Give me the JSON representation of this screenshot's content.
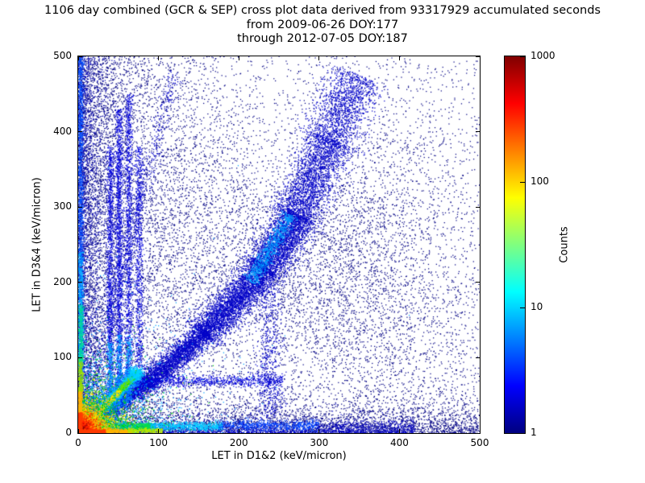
{
  "chart_data": {
    "type": "heatmap",
    "title": "1106 day combined (GCR & SEP) cross plot data derived from 93317929 accumulated seconds",
    "subtitle": [
      "from 2009-06-26 DOY:177",
      "through 2012-07-05 DOY:187"
    ],
    "xlabel": "LET in D1&2 (keV/micron)",
    "ylabel": "LET in D3&4 (keV/micron)",
    "x_range": [
      0,
      500
    ],
    "y_range": [
      0,
      500
    ],
    "x_ticks": [
      0,
      100,
      200,
      300,
      400,
      500
    ],
    "y_ticks": [
      0,
      100,
      200,
      300,
      400,
      500
    ],
    "grid": false,
    "colorbar": {
      "label": "Counts",
      "scale": "log",
      "ticks": [
        "1",
        "10",
        "100",
        "1000"
      ],
      "range": [
        1,
        1000
      ],
      "colormap": "jet"
    },
    "description": "2D log-density cross plot of LET in detectors D1&2 vs D3&4; intense hot spot at origin (counts ~1000), bright diagonal coincidence line up to ~(72,78), horizontal proton band near y~8, vertical streaks near x=40-76, broad diffuse diagonal band from (10,8) through (235,220) to (350,475), sparse single-count background everywhere.",
    "density_features": [
      {
        "type": "uniform",
        "n": 3200,
        "x0": 0,
        "x1": 500,
        "y0": 0,
        "y1": 500,
        "color": "#000084"
      },
      {
        "type": "expx",
        "n": 6500,
        "scale": 55,
        "y0": 0,
        "y1": 500,
        "color": "#000084"
      },
      {
        "type": "expx",
        "n": 2500,
        "scale": 10,
        "y0": 0,
        "y1": 500,
        "color": "#0000b4"
      },
      {
        "type": "expy",
        "n": 3800,
        "scale": 20,
        "x0": 0,
        "x1": 500,
        "color": "#000084"
      },
      {
        "type": "expy",
        "n": 1500,
        "scale": 6,
        "x0": 0,
        "x1": 420,
        "color": "#0000c8"
      },
      {
        "type": "blob",
        "n": 1400,
        "cx": 140,
        "cy": 280,
        "sx": 55,
        "sy": 95,
        "color": "#000084"
      },
      {
        "type": "blob",
        "n": 2200,
        "cx": 300,
        "cy": 210,
        "sx": 75,
        "sy": 70,
        "color": "#000084"
      },
      {
        "type": "blob",
        "n": 1000,
        "cx": 390,
        "cy": 310,
        "sx": 80,
        "sy": 85,
        "color": "#000084"
      },
      {
        "type": "blob",
        "n": 700,
        "cx": 410,
        "cy": 120,
        "sx": 80,
        "sy": 55,
        "color": "#000084"
      },
      {
        "type": "line",
        "n": 700,
        "x1": 5,
        "y1": 10,
        "x2": 120,
        "y2": 480,
        "sigma": 5,
        "color": "#0000c8"
      },
      {
        "type": "line",
        "n": 2200,
        "x1": 10,
        "y1": 8,
        "x2": 90,
        "y2": 70,
        "sigma": 6,
        "color": "#0000c8"
      },
      {
        "type": "line",
        "n": 2600,
        "x1": 85,
        "y1": 65,
        "x2": 160,
        "y2": 135,
        "sigma": 8,
        "color": "#0000c8"
      },
      {
        "type": "line",
        "n": 3500,
        "x1": 155,
        "y1": 130,
        "x2": 235,
        "y2": 220,
        "sigma": 11,
        "color": "#0000c8"
      },
      {
        "type": "line",
        "n": 2600,
        "x1": 230,
        "y1": 215,
        "x2": 275,
        "y2": 290,
        "sigma": 13,
        "color": "#0000c8"
      },
      {
        "type": "line",
        "n": 2200,
        "x1": 270,
        "y1": 285,
        "x2": 315,
        "y2": 390,
        "sigma": 15,
        "color": "#0000c8"
      },
      {
        "type": "line",
        "n": 1500,
        "x1": 310,
        "y1": 385,
        "x2": 350,
        "y2": 475,
        "sigma": 17,
        "color": "#0000c8"
      },
      {
        "type": "line",
        "n": 800,
        "x1": 215,
        "y1": 200,
        "x2": 265,
        "y2": 290,
        "sigma": 5,
        "color": "#00a0ff"
      },
      {
        "type": "vstreak",
        "n": 1100,
        "x": 40,
        "y0": 35,
        "y1": 380,
        "sigma": 2.2,
        "color": "#0000dc"
      },
      {
        "type": "vstreak",
        "n": 1400,
        "x": 51,
        "y0": 35,
        "y1": 430,
        "sigma": 2.4,
        "color": "#0000dc"
      },
      {
        "type": "vstreak",
        "n": 1100,
        "x": 63,
        "y0": 40,
        "y1": 450,
        "sigma": 2.4,
        "color": "#0000dc"
      },
      {
        "type": "vstreak",
        "n": 800,
        "x": 76,
        "y0": 45,
        "y1": 380,
        "sigma": 2.6,
        "color": "#0000dc"
      },
      {
        "type": "vstreak",
        "n": 260,
        "x": 40,
        "y0": 35,
        "y1": 120,
        "sigma": 2,
        "color": "#00a0ff"
      },
      {
        "type": "vstreak",
        "n": 260,
        "x": 51,
        "y0": 35,
        "y1": 130,
        "sigma": 2,
        "color": "#00a0ff"
      },
      {
        "type": "vstreak",
        "n": 220,
        "x": 63,
        "y0": 40,
        "y1": 130,
        "sigma": 2,
        "color": "#00a0ff"
      },
      {
        "type": "vstreak",
        "n": 1400,
        "x": 3,
        "y0": 80,
        "y1": 500,
        "sigma": 2,
        "color": "#0050ff"
      },
      {
        "type": "vstreak",
        "n": 500,
        "x": 3,
        "y0": 80,
        "y1": 240,
        "sigma": 2,
        "color": "#00b4ff"
      },
      {
        "type": "hstreak",
        "n": 700,
        "y": 69,
        "x0": 80,
        "x1": 255,
        "sigma": 4,
        "color": "#0000dc"
      },
      {
        "type": "vstreak",
        "n": 600,
        "x": 238,
        "y0": 20,
        "y1": 200,
        "sigma": 8,
        "color": "#0000c8"
      },
      {
        "type": "line",
        "n": 2000,
        "x1": 3,
        "y1": 3,
        "x2": 72,
        "y2": 78,
        "sigma": 7,
        "color": "#0064ff"
      },
      {
        "type": "line",
        "n": 2200,
        "x1": 3,
        "y1": 3,
        "x2": 72,
        "y2": 78,
        "sigma": 3.2,
        "color": "#00c8ff"
      },
      {
        "type": "line",
        "n": 700,
        "x1": 40,
        "y1": 43,
        "x2": 72,
        "y2": 78,
        "sigma": 1.6,
        "color": "#64e600"
      },
      {
        "type": "line",
        "n": 800,
        "x1": 25,
        "y1": 27,
        "x2": 52,
        "y2": 56,
        "sigma": 1.3,
        "color": "#f0e600"
      },
      {
        "type": "line",
        "n": 800,
        "x1": 12,
        "y1": 13,
        "x2": 30,
        "y2": 32,
        "sigma": 1.3,
        "color": "#ff9600"
      },
      {
        "type": "line",
        "n": 800,
        "x1": 2,
        "y1": 2,
        "x2": 15,
        "y2": 16,
        "sigma": 1.4,
        "color": "#ff1e00"
      },
      {
        "type": "blob",
        "n": 450,
        "cx": 72,
        "cy": 78,
        "sx": 4,
        "sy": 4,
        "color": "#00d2ff"
      },
      {
        "type": "hstreak",
        "n": 1300,
        "y": 8,
        "x0": 4,
        "x1": 95,
        "sigma": 2.8,
        "color": "#00dc50"
      },
      {
        "type": "hstreak",
        "n": 700,
        "y": 9,
        "x0": 90,
        "x1": 180,
        "sigma": 3,
        "color": "#00c8ff"
      },
      {
        "type": "hstreak",
        "n": 550,
        "y": 10,
        "x0": 175,
        "x1": 300,
        "sigma": 3.5,
        "color": "#0046ff"
      },
      {
        "type": "hstreak",
        "n": 200,
        "y": 10,
        "x0": 295,
        "x1": 420,
        "sigma": 4,
        "color": "#0000b4"
      },
      {
        "type": "qblob",
        "n": 3000,
        "cx": 3,
        "cy": 3,
        "scale": 40,
        "color": "#00a0ff"
      },
      {
        "type": "qblob",
        "n": 2600,
        "cx": 3,
        "cy": 3,
        "scale": 26,
        "color": "#00d200"
      },
      {
        "type": "qblob",
        "n": 2200,
        "cx": 3,
        "cy": 3,
        "scale": 16,
        "color": "#ffe600"
      },
      {
        "type": "qblob",
        "n": 1800,
        "cx": 2,
        "cy": 2,
        "scale": 10,
        "color": "#ff9600"
      },
      {
        "type": "qblob",
        "n": 1500,
        "cx": 2,
        "cy": 2,
        "scale": 6,
        "color": "#ff1e00"
      },
      {
        "type": "qblob",
        "n": 700,
        "cx": 2,
        "cy": 2,
        "scale": 2.5,
        "color": "#8c0000"
      },
      {
        "type": "hstreak",
        "n": 700,
        "y": 2,
        "x0": 0,
        "x1": 38,
        "sigma": 1.4,
        "color": "#ff3c00"
      },
      {
        "type": "hstreak",
        "n": 400,
        "y": 2.5,
        "x0": 35,
        "x1": 68,
        "sigma": 1.5,
        "color": "#ffb400"
      },
      {
        "type": "hstreak",
        "n": 300,
        "y": 3,
        "x0": 62,
        "x1": 105,
        "sigma": 1.6,
        "color": "#b4e600"
      },
      {
        "type": "vstreak",
        "n": 600,
        "x": 2,
        "y0": 0,
        "y1": 30,
        "sigma": 1.4,
        "color": "#ff3c00"
      },
      {
        "type": "vstreak",
        "n": 350,
        "x": 2.5,
        "y0": 28,
        "y1": 60,
        "sigma": 1.5,
        "color": "#ffb400"
      },
      {
        "type": "vstreak",
        "n": 300,
        "x": 3,
        "y0": 55,
        "y1": 100,
        "sigma": 1.6,
        "color": "#96dc00"
      },
      {
        "type": "vstreak",
        "n": 300,
        "x": 3.5,
        "y0": 95,
        "y1": 170,
        "sigma": 1.8,
        "color": "#00dc96"
      }
    ]
  }
}
